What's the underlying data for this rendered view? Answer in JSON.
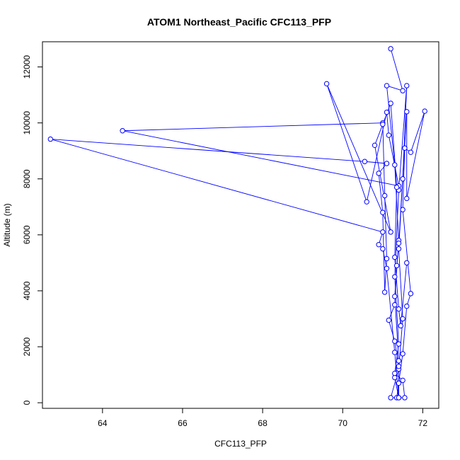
{
  "chart_data": {
    "type": "scatter",
    "title": "ATOM1 Northeast_Pacific CFC113_PFP",
    "xlabel": "CFC113_PFP",
    "ylabel": "Altitude (m)",
    "xlim": [
      62.5,
      72.4
    ],
    "ylim": [
      -200,
      12900
    ],
    "x_ticks": [
      64,
      66,
      68,
      70,
      72
    ],
    "y_ticks": [
      0,
      2000,
      4000,
      6000,
      8000,
      10000,
      12000
    ],
    "grid": false,
    "legend": "none",
    "series": [
      {
        "color": "#0000ff",
        "mode": "lines+markers",
        "points": [
          [
            71.2,
            12650
          ],
          [
            71.5,
            11150
          ],
          [
            71.1,
            11330
          ],
          [
            71.3,
            8500
          ],
          [
            71.4,
            5800
          ],
          [
            71.3,
            3800
          ],
          [
            71.4,
            1500
          ],
          [
            71.3,
            900
          ],
          [
            71.4,
            180
          ],
          [
            71.2,
            180
          ],
          [
            71.4,
            1200
          ],
          [
            71.5,
            3000
          ],
          [
            71.4,
            5500
          ],
          [
            71.5,
            8000
          ],
          [
            71.6,
            11330
          ],
          [
            71.4,
            7600
          ],
          [
            71.3,
            4500
          ],
          [
            71.4,
            2100
          ],
          [
            71.3,
            1050
          ],
          [
            71.5,
            800
          ],
          [
            71.55,
            180
          ],
          [
            71.35,
            180
          ],
          [
            71.5,
            1750
          ],
          [
            71.6,
            3450
          ],
          [
            71.7,
            3900
          ],
          [
            71.5,
            6900
          ],
          [
            71.55,
            9100
          ],
          [
            71.7,
            8950
          ],
          [
            72.05,
            10420
          ],
          [
            71.6,
            7300
          ],
          [
            71.6,
            10400
          ],
          [
            71.4,
            5700
          ],
          [
            71.35,
            4900
          ],
          [
            71.3,
            3500
          ],
          [
            71.15,
            2950
          ],
          [
            71.3,
            2200
          ],
          [
            71.4,
            1300
          ],
          [
            71.4,
            700
          ],
          [
            71.4,
            180
          ],
          [
            71.3,
            1800
          ],
          [
            71.1,
            4800
          ],
          [
            71.0,
            5500
          ],
          [
            70.9,
            5650
          ],
          [
            71.0,
            6100
          ],
          [
            62.7,
            9420
          ],
          [
            70.55,
            8620
          ],
          [
            71.1,
            8550
          ],
          [
            70.9,
            8200
          ],
          [
            71.0,
            6800
          ],
          [
            71.05,
            3950
          ],
          [
            71.1,
            5150
          ],
          [
            71.05,
            7400
          ],
          [
            71.0,
            10000
          ],
          [
            64.5,
            9720
          ],
          [
            71.4,
            7750
          ],
          [
            71.15,
            9560
          ],
          [
            71.1,
            10380
          ],
          [
            70.6,
            7180
          ],
          [
            69.6,
            11400
          ],
          [
            71.2,
            6100
          ],
          [
            70.8,
            9200
          ],
          [
            71.0,
            9950
          ],
          [
            71.2,
            10700
          ],
          [
            71.35,
            7700
          ],
          [
            71.3,
            5200
          ],
          [
            71.4,
            3350
          ],
          [
            71.45,
            2750
          ],
          [
            71.6,
            5000
          ]
        ]
      }
    ]
  }
}
